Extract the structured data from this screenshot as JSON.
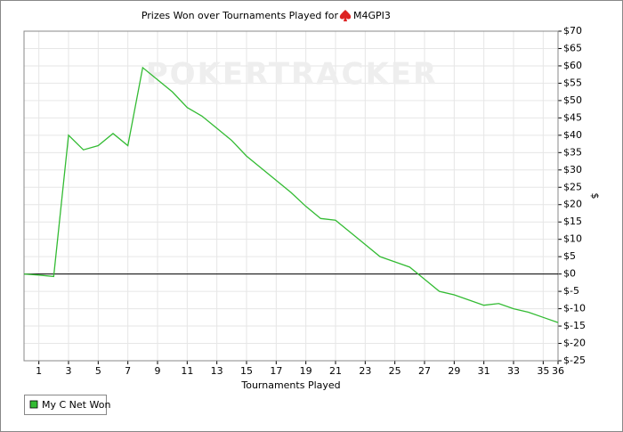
{
  "chart_data": {
    "type": "line",
    "title": "Prizes Won over Tournaments Played for",
    "player": "M4GPI3",
    "watermark": "POKERTRACKER",
    "x_label": "Tournaments Played",
    "y_label": "$",
    "x": [
      0,
      1,
      2,
      3,
      4,
      5,
      6,
      7,
      8,
      9,
      10,
      11,
      12,
      13,
      14,
      15,
      16,
      17,
      18,
      19,
      20,
      21,
      22,
      23,
      24,
      25,
      26,
      27,
      28,
      29,
      30,
      31,
      32,
      33,
      34,
      35,
      36
    ],
    "series": [
      {
        "name": "My C Net Won",
        "color": "#33bb33",
        "values": [
          0,
          -0.3,
          -0.7,
          40,
          35.8,
          37,
          40.5,
          37,
          59.5,
          56,
          52.5,
          48,
          45.5,
          42,
          38.5,
          34,
          30.5,
          27,
          23.5,
          19.5,
          16,
          15.5,
          12,
          8.5,
          5,
          3.5,
          2,
          -1.5,
          -5,
          -6,
          -7.5,
          -9,
          -8.5,
          -10,
          -11,
          -12.5,
          -14
        ]
      }
    ],
    "xlim": [
      0,
      36
    ],
    "xticks": [
      1,
      3,
      5,
      7,
      9,
      11,
      13,
      15,
      17,
      19,
      21,
      23,
      25,
      27,
      29,
      31,
      33,
      35,
      36
    ],
    "ylim": [
      -25,
      70
    ],
    "yticks": [
      {
        "value": 70,
        "label": "$70"
      },
      {
        "value": 65,
        "label": "$65"
      },
      {
        "value": 60,
        "label": "$60"
      },
      {
        "value": 55,
        "label": "$55"
      },
      {
        "value": 50,
        "label": "$50"
      },
      {
        "value": 45,
        "label": "$45"
      },
      {
        "value": 40,
        "label": "$40"
      },
      {
        "value": 35,
        "label": "$35"
      },
      {
        "value": 30,
        "label": "$30"
      },
      {
        "value": 25,
        "label": "$25"
      },
      {
        "value": 20,
        "label": "$20"
      },
      {
        "value": 15,
        "label": "$15"
      },
      {
        "value": 10,
        "label": "$10"
      },
      {
        "value": 5,
        "label": "$5"
      },
      {
        "value": 0,
        "label": "$0"
      },
      {
        "value": -5,
        "label": "$-5"
      },
      {
        "value": -10,
        "label": "$-10"
      },
      {
        "value": -15,
        "label": "$-15"
      },
      {
        "value": -20,
        "label": "$-20"
      },
      {
        "value": -25,
        "label": "$-25"
      }
    ],
    "grid": true
  }
}
